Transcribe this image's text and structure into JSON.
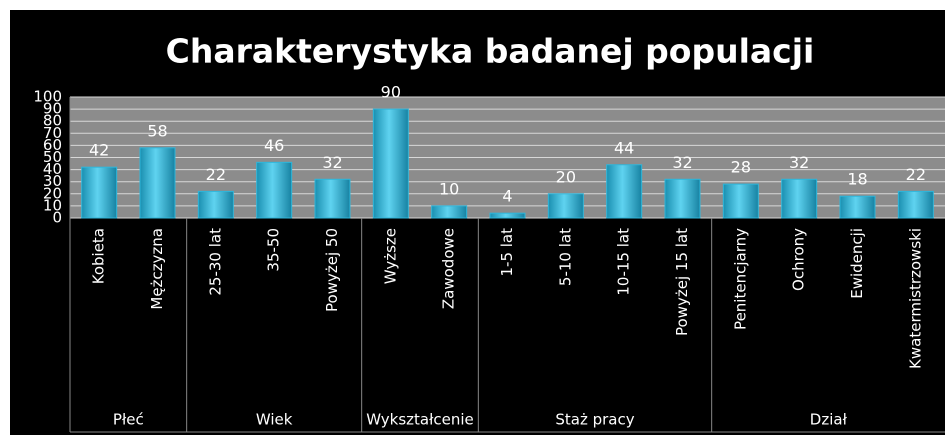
{
  "chart_data": {
    "type": "bar",
    "title": "Charakterystyka badanej populacji",
    "color": "#2fb6da",
    "ylim": [
      0,
      100
    ],
    "yticks": [
      0,
      10,
      20,
      30,
      40,
      50,
      60,
      70,
      80,
      90,
      100
    ],
    "grid": true,
    "groups": [
      {
        "label": "Płeć",
        "categories": [
          "Kobieta",
          "Mężczyzna"
        ],
        "values": [
          42,
          58
        ]
      },
      {
        "label": "Wiek",
        "categories": [
          "25-30 lat",
          "35-50",
          "Powyżej 50"
        ],
        "values": [
          22,
          46,
          32
        ]
      },
      {
        "label": "Wykształcenie",
        "categories": [
          "Wyższe",
          "Zawodowe"
        ],
        "values": [
          90,
          10
        ]
      },
      {
        "label": "Staż pracy",
        "categories": [
          "1-5 lat",
          "5-10 lat",
          "10-15 lat",
          "Powyżej 15 lat"
        ],
        "values": [
          4,
          20,
          44,
          32
        ]
      },
      {
        "label": "Dział",
        "categories": [
          "Penitencjarny",
          "Ochrony",
          "Ewidencji",
          "Kwatermistrzowski"
        ],
        "values": [
          28,
          32,
          18,
          22
        ]
      }
    ]
  }
}
